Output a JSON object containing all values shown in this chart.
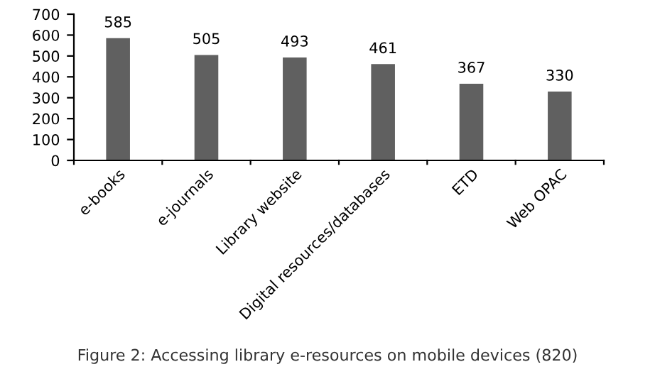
{
  "chart_data": {
    "type": "bar",
    "categories": [
      "e-books",
      "e-journals",
      "Library website",
      "Digital resources/databases",
      "ETD",
      "Web OPAC"
    ],
    "values": [
      585,
      505,
      493,
      461,
      367,
      330
    ],
    "color": "#606060",
    "ylim": [
      0,
      700
    ],
    "yticks": [
      0,
      100,
      200,
      300,
      400,
      500,
      600,
      700
    ],
    "data_labels": true,
    "grid": false,
    "legend": false,
    "annotations": [
      "Figure 2: Accessing library e-resources on mobile devices (820)"
    ]
  }
}
